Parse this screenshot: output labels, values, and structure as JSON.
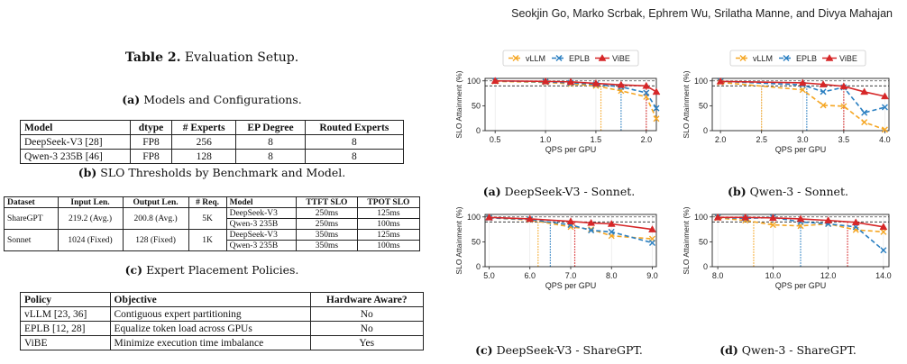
{
  "header": {
    "authors": "Seokjin Go, Marko Scrbak, Ephrem Wu, Srilatha Manne, and Divya Mahajan"
  },
  "table_caption": {
    "label": "Table 2.",
    "text": "Evaluation Setup."
  },
  "subtables": {
    "a": {
      "label": "(a)",
      "title": "Models and Configurations.",
      "headers": [
        "Model",
        "dtype",
        "# Experts",
        "EP Degree",
        "Routed Experts"
      ],
      "rows": [
        [
          "DeepSeek-V3 [28]",
          "FP8",
          "256",
          "8",
          "8"
        ],
        [
          "Qwen-3 235B [46]",
          "FP8",
          "128",
          "8",
          "8"
        ]
      ]
    },
    "b": {
      "label": "(b)",
      "title": "SLO Thresholds by Benchmark and Model.",
      "headers": [
        "Dataset",
        "Input Len.",
        "Output Len.",
        "# Req.",
        "Model",
        "TTFT SLO",
        "TPOT SLO"
      ],
      "groups": [
        {
          "dataset": "ShareGPT",
          "input": "219.2 (Avg.)",
          "output": "200.8 (Avg.)",
          "req": "5K",
          "rows": [
            [
              "DeepSeek-V3",
              "250ms",
              "125ms"
            ],
            [
              "Qwen-3 235B",
              "250ms",
              "100ms"
            ]
          ]
        },
        {
          "dataset": "Sonnet",
          "input": "1024 (Fixed)",
          "output": "128 (Fixed)",
          "req": "1K",
          "rows": [
            [
              "DeepSeek-V3",
              "350ms",
              "125ms"
            ],
            [
              "Qwen-3 235B",
              "350ms",
              "100ms"
            ]
          ]
        }
      ]
    },
    "c": {
      "label": "(c)",
      "title": "Expert Placement Policies.",
      "headers": [
        "Policy",
        "Objective",
        "Hardware Aware?"
      ],
      "rows": [
        [
          "vLLM [23, 36]",
          "Contiguous expert partitioning",
          "No"
        ],
        [
          "EPLB [12, 28]",
          "Equalize token load across GPUs",
          "No"
        ],
        [
          "ViBE",
          "Minimize execution time imbalance",
          "Yes"
        ]
      ]
    }
  },
  "chart_data": [
    {
      "type": "line",
      "panel_label": "(a)",
      "caption": "DeepSeek-V3 - Sonnet.",
      "xlabel": "QPS per GPU",
      "ylabel": "SLO Attainment (%)",
      "xlim": [
        0.4,
        2.1
      ],
      "ylim": [
        0,
        105
      ],
      "xticks": [
        0.5,
        1.0,
        1.5,
        2.0
      ],
      "xtick_labels": [
        "0.5",
        "1.0",
        "1.5",
        "2.0"
      ],
      "yticks": [
        0,
        50,
        100
      ],
      "ytick_labels": [
        "0",
        "50",
        "100"
      ],
      "threshold": 90,
      "legend": true,
      "x": [
        0.5,
        1.0,
        1.25,
        1.5,
        1.75,
        2.0,
        2.25
      ],
      "series": [
        {
          "name": "vLLM",
          "color": "#f5a623",
          "dash": "5,3",
          "marker": "x",
          "values": [
            99,
            97,
            94,
            90,
            80,
            68,
            24
          ],
          "cross_x": 1.55
        },
        {
          "name": "EPLB",
          "color": "#2a7fc1",
          "dash": "5,3",
          "marker": "x",
          "values": [
            100,
            98,
            96,
            93,
            88,
            76,
            45
          ],
          "cross_x": 1.75
        },
        {
          "name": "ViBE",
          "color": "#d62728",
          "dash": "",
          "marker": "triangle",
          "values": [
            100,
            99,
            98,
            95,
            92,
            90,
            78
          ],
          "cross_x": 2.0
        }
      ]
    },
    {
      "type": "line",
      "panel_label": "(b)",
      "caption": "Qwen-3 - Sonnet.",
      "xlabel": "QPS per GPU",
      "ylabel": "SLO Attainment (%)",
      "xlim": [
        1.9,
        4.05
      ],
      "ylim": [
        0,
        105
      ],
      "xticks": [
        2.0,
        2.5,
        3.0,
        3.5,
        4.0
      ],
      "xtick_labels": [
        "2.0",
        "2.5",
        "3.0",
        "3.5",
        "4.0"
      ],
      "yticks": [
        0,
        50,
        100
      ],
      "ytick_labels": [
        "0",
        "50",
        "100"
      ],
      "threshold": 90,
      "legend": true,
      "x": [
        2.0,
        3.0,
        3.25,
        3.5,
        3.75,
        4.0
      ],
      "series": [
        {
          "name": "vLLM",
          "color": "#f5a623",
          "dash": "5,3",
          "marker": "x",
          "values": [
            97,
            82,
            51,
            49,
            17,
            2
          ],
          "cross_x": 2.5
        },
        {
          "name": "EPLB",
          "color": "#2a7fc1",
          "dash": "5,3",
          "marker": "x",
          "values": [
            99,
            92,
            78,
            87,
            36,
            47
          ],
          "cross_x": 3.05
        },
        {
          "name": "ViBE",
          "color": "#d62728",
          "dash": "",
          "marker": "triangle",
          "values": [
            99,
            96,
            93,
            89,
            78,
            69
          ],
          "cross_x": 3.5
        }
      ]
    },
    {
      "type": "line",
      "panel_label": "(c)",
      "caption": "DeepSeek-V3 - ShareGPT.",
      "xlabel": "QPS per GPU",
      "ylabel": "SLO Attainment (%)",
      "xlim": [
        4.9,
        9.1
      ],
      "ylim": [
        0,
        105
      ],
      "xticks": [
        5.0,
        6.0,
        7.0,
        8.0,
        9.0
      ],
      "xtick_labels": [
        "5.0",
        "6.0",
        "7.0",
        "8.0",
        "9.0"
      ],
      "yticks": [
        0,
        50,
        100
      ],
      "ytick_labels": [
        "0",
        "50",
        "100"
      ],
      "threshold": 90,
      "legend": false,
      "x": [
        5.0,
        6.0,
        7.0,
        7.5,
        8.0,
        9.0
      ],
      "series": [
        {
          "name": "vLLM",
          "color": "#f5a623",
          "dash": "5,3",
          "marker": "x",
          "values": [
            98,
            94,
            80,
            75,
            62,
            56
          ],
          "cross_x": 6.2
        },
        {
          "name": "EPLB",
          "color": "#2a7fc1",
          "dash": "5,3",
          "marker": "x",
          "values": [
            98,
            95,
            84,
            73,
            70,
            48
          ],
          "cross_x": 6.5
        },
        {
          "name": "ViBE",
          "color": "#d62728",
          "dash": "",
          "marker": "triangle",
          "values": [
            99,
            96,
            91,
            88,
            86,
            75
          ],
          "cross_x": 7.1
        }
      ]
    },
    {
      "type": "line",
      "panel_label": "(d)",
      "caption": "Qwen-3 - ShareGPT.",
      "xlabel": "QPS per GPU",
      "ylabel": "SLO Attainment (%)",
      "xlim": [
        7.8,
        14.2
      ],
      "ylim": [
        0,
        105
      ],
      "xticks": [
        8.0,
        10.0,
        12.0,
        14.0
      ],
      "xtick_labels": [
        "8.0",
        "10.0",
        "12.0",
        "14.0"
      ],
      "yticks": [
        0,
        50,
        100
      ],
      "ytick_labels": [
        "0",
        "50",
        "100"
      ],
      "threshold": 90,
      "legend": false,
      "x": [
        8.0,
        9.0,
        10.0,
        11.0,
        12.0,
        13.0,
        14.0
      ],
      "series": [
        {
          "name": "vLLM",
          "color": "#f5a623",
          "dash": "5,3",
          "marker": "x",
          "values": [
            98,
            93,
            84,
            82,
            86,
            74,
            70
          ],
          "cross_x": 9.3
        },
        {
          "name": "EPLB",
          "color": "#2a7fc1",
          "dash": "5,3",
          "marker": "x",
          "values": [
            99,
            97,
            99,
            90,
            86,
            80,
            33
          ],
          "cross_x": 11.0
        },
        {
          "name": "ViBE",
          "color": "#d62728",
          "dash": "",
          "marker": "triangle",
          "values": [
            99,
            99,
            98,
            96,
            93,
            89,
            80
          ],
          "cross_x": 12.7
        }
      ]
    }
  ]
}
